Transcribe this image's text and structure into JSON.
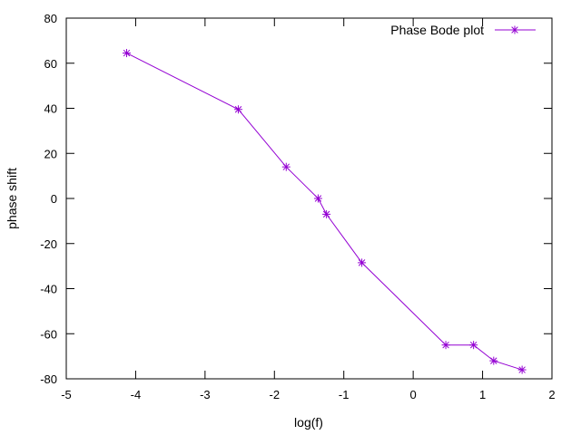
{
  "chart_data": {
    "type": "line",
    "title": "",
    "xlabel": "log(f)",
    "ylabel": "phase shift",
    "xlim": [
      -5,
      2
    ],
    "ylim": [
      -80,
      80
    ],
    "xticks": [
      -5,
      -4,
      -3,
      -2,
      -1,
      0,
      1,
      2
    ],
    "yticks": [
      -80,
      -60,
      -40,
      -20,
      0,
      20,
      40,
      60,
      80
    ],
    "grid": false,
    "legend_position": "top-right",
    "series": [
      {
        "name": "Phase Bode plot",
        "color": "#9400d3",
        "marker": "asterisk",
        "x": [
          -4.13,
          -2.52,
          -1.83,
          -1.37,
          -1.25,
          -0.74,
          0.47,
          0.87,
          1.16,
          1.57
        ],
        "y": [
          64.5,
          39.5,
          14.0,
          0.0,
          -7.0,
          -28.5,
          -65.0,
          -65.0,
          -72.0,
          -76.0
        ]
      }
    ]
  }
}
